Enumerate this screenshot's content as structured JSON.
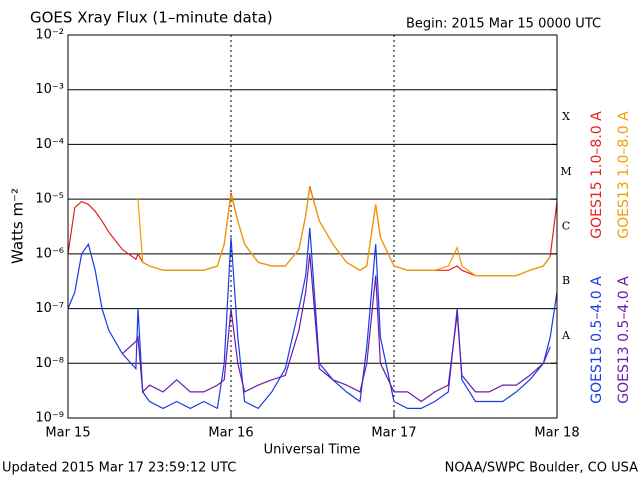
{
  "chart_data": {
    "type": "line",
    "title": "GOES Xray Flux (1–minute data)",
    "begin": "Begin:  2015 Mar 15 0000 UTC",
    "ylabel": "Watts m⁻²",
    "xlabel": "Universal Time",
    "updated": "Updated 2015 Mar 17 23:59:12 UTC",
    "credit": "NOAA/SWPC Boulder, CO USA",
    "log_y": true,
    "grid": true,
    "xlim": [
      0,
      72
    ],
    "xticks": [
      {
        "value": 0,
        "label": "Mar 15"
      },
      {
        "value": 24,
        "label": "Mar 16"
      },
      {
        "value": 48,
        "label": "Mar 17"
      },
      {
        "value": 72,
        "label": "Mar 18"
      }
    ],
    "ylim": [
      1e-09,
      0.01
    ],
    "yticks": [
      {
        "value": 1e-09,
        "label": "10⁻⁹"
      },
      {
        "value": 1e-08,
        "label": "10⁻⁸"
      },
      {
        "value": 1e-07,
        "label": "10⁻⁷"
      },
      {
        "value": 1e-06,
        "label": "10⁻⁶"
      },
      {
        "value": 1e-05,
        "label": "10⁻⁵"
      },
      {
        "value": 0.0001,
        "label": "10⁻⁴"
      },
      {
        "value": 0.001,
        "label": "10⁻³"
      },
      {
        "value": 0.01,
        "label": "10⁻²"
      }
    ],
    "flare_classes": [
      {
        "label": "A",
        "value": 1e-08
      },
      {
        "label": "B",
        "value": 1e-07
      },
      {
        "label": "C",
        "value": 1e-06
      },
      {
        "label": "M",
        "value": 1e-05
      },
      {
        "label": "X",
        "value": 0.0001
      }
    ],
    "x": [
      0,
      1,
      2,
      3,
      4,
      5,
      6,
      8,
      10,
      10.3,
      11,
      12,
      14,
      16,
      18,
      20,
      22,
      23,
      24,
      25,
      26,
      28,
      30,
      32,
      34,
      35,
      35.6,
      37,
      39,
      41,
      43,
      44,
      45.3,
      46,
      48,
      50,
      52,
      54,
      56,
      57.3,
      58,
      60,
      62,
      64,
      66,
      68,
      70,
      71,
      72
    ],
    "series": [
      {
        "name": "GOES15 1.0–8.0 A",
        "color": "#e8201a",
        "values": [
          1e-06,
          7e-06,
          9e-06,
          8e-06,
          6e-06,
          4e-06,
          2.5e-06,
          1.2e-06,
          8e-07,
          1e-06,
          7e-07,
          6e-07,
          5e-07,
          5e-07,
          5e-07,
          5e-07,
          6e-07,
          1.5e-06,
          1.3e-05,
          4e-06,
          1.5e-06,
          7e-07,
          6e-07,
          6e-07,
          1.2e-06,
          5e-06,
          1.7e-05,
          4e-06,
          1.5e-06,
          7e-07,
          5e-07,
          6e-07,
          8e-06,
          2e-06,
          6e-07,
          5e-07,
          5e-07,
          5e-07,
          5e-07,
          6e-07,
          5e-07,
          4e-07,
          4e-07,
          4e-07,
          4e-07,
          5e-07,
          6e-07,
          9e-07,
          9e-06
        ]
      },
      {
        "name": "GOES13 1.0–8.0 A",
        "color": "#f0a000",
        "values": [
          null,
          null,
          null,
          null,
          null,
          null,
          null,
          null,
          null,
          1e-05,
          7e-07,
          6e-07,
          5e-07,
          5e-07,
          5e-07,
          5e-07,
          6e-07,
          1.5e-06,
          1.2e-05,
          4e-06,
          1.5e-06,
          7e-07,
          6e-07,
          6e-07,
          1.2e-06,
          5e-06,
          1.6e-05,
          4e-06,
          1.5e-06,
          7e-07,
          5e-07,
          6e-07,
          8e-06,
          2e-06,
          6e-07,
          5e-07,
          5e-07,
          5e-07,
          6e-07,
          1.3e-06,
          6e-07,
          4e-07,
          4e-07,
          4e-07,
          4e-07,
          5e-07,
          6e-07,
          9e-07,
          null
        ]
      },
      {
        "name": "GOES15 0.5–4.0 A",
        "color": "#1a3ae8",
        "values": [
          1e-07,
          2e-07,
          1e-06,
          1.5e-06,
          5e-07,
          1e-07,
          4e-08,
          1.5e-08,
          8e-09,
          1e-07,
          3e-09,
          2e-09,
          1.5e-09,
          2e-09,
          1.5e-09,
          2e-09,
          1.5e-09,
          1e-08,
          2e-06,
          3e-08,
          2e-09,
          1.5e-09,
          3e-09,
          8e-09,
          1e-07,
          4e-07,
          3e-06,
          1e-08,
          5e-09,
          3e-09,
          2e-09,
          2e-08,
          1.5e-06,
          3e-08,
          2e-09,
          1.5e-09,
          1.5e-09,
          2e-09,
          3e-09,
          1e-07,
          5e-09,
          2e-09,
          2e-09,
          2e-09,
          3e-09,
          5e-09,
          1e-08,
          3e-08,
          2e-07
        ]
      },
      {
        "name": "GOES13 0.5–4.0 A",
        "color": "#6a1aa8",
        "values": [
          null,
          null,
          null,
          null,
          null,
          null,
          null,
          1.5e-08,
          2.5e-08,
          3e-08,
          3e-09,
          4e-09,
          3e-09,
          5e-09,
          3e-09,
          3e-09,
          4e-09,
          5e-09,
          1e-07,
          1e-08,
          3e-09,
          4e-09,
          5e-09,
          6e-09,
          4e-08,
          2e-07,
          1e-06,
          8e-09,
          5e-09,
          4e-09,
          3e-09,
          1e-08,
          4e-07,
          1e-08,
          3e-09,
          3e-09,
          2e-09,
          3e-09,
          4e-09,
          8e-08,
          6e-09,
          3e-09,
          3e-09,
          4e-09,
          4e-09,
          6e-09,
          1e-08,
          2e-08,
          null
        ]
      }
    ]
  }
}
